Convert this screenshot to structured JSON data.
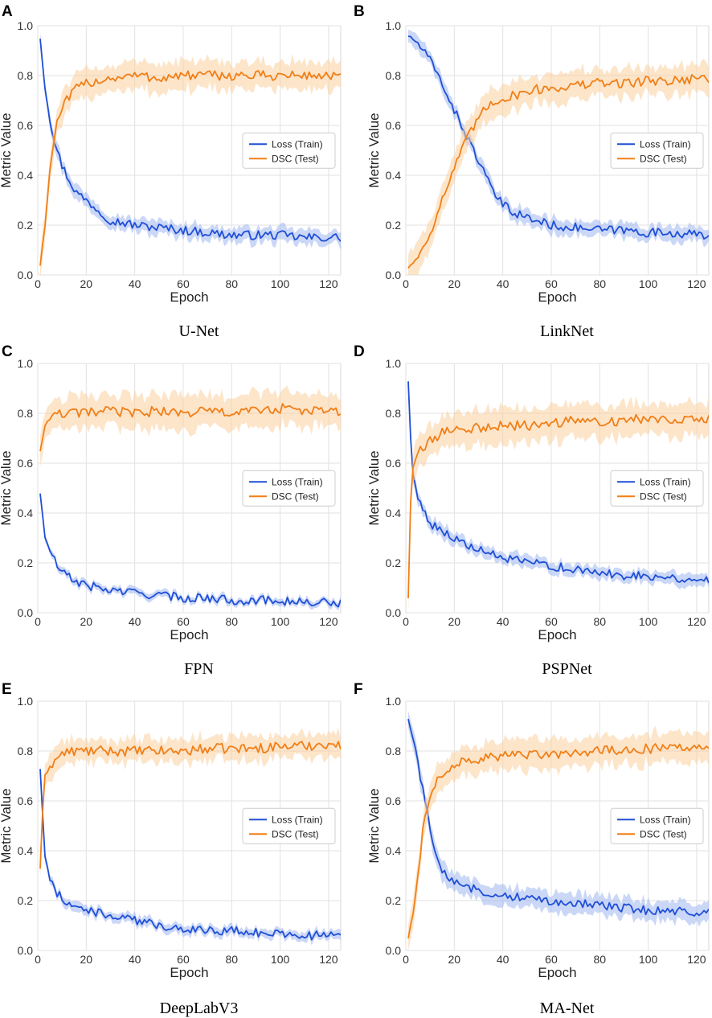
{
  "figure": {
    "colors": {
      "loss": "#1f4fd6",
      "dsc": "#f07f17",
      "loss_band": "#9fb6f0",
      "dsc_band": "#fbcf9f",
      "grid": "#e2e2e2"
    },
    "legend": {
      "loss": "Loss (Train)",
      "dsc": "DSC (Test)"
    }
  },
  "chart_data": [
    {
      "type": "line",
      "panel": "A",
      "caption": "U-Net",
      "xlabel": "Epoch",
      "ylabel": "Metric Value",
      "xlim": [
        0,
        125
      ],
      "ylim": [
        0,
        1.0
      ],
      "xticks": [
        "0",
        "20",
        "40",
        "60",
        "80",
        "100",
        "120"
      ],
      "yticks": [
        "0.0",
        "0.2",
        "0.4",
        "0.6",
        "0.8",
        "1.0"
      ],
      "legend_position": "center-right",
      "grid": true,
      "series": [
        {
          "name": "Loss (Train)",
          "x": [
            1,
            3,
            5,
            8,
            10,
            13,
            16,
            20,
            25,
            30,
            40,
            50,
            60,
            70,
            80,
            90,
            100,
            110,
            120,
            125
          ],
          "values": [
            0.95,
            0.75,
            0.62,
            0.5,
            0.44,
            0.38,
            0.33,
            0.3,
            0.26,
            0.22,
            0.2,
            0.19,
            0.18,
            0.17,
            0.16,
            0.16,
            0.16,
            0.15,
            0.15,
            0.15
          ],
          "band": 0.03
        },
        {
          "name": "DSC (Test)",
          "x": [
            1,
            3,
            5,
            7,
            9,
            12,
            15,
            20,
            25,
            30,
            40,
            50,
            60,
            70,
            80,
            90,
            100,
            110,
            120,
            125
          ],
          "values": [
            0.04,
            0.2,
            0.42,
            0.57,
            0.64,
            0.7,
            0.74,
            0.77,
            0.78,
            0.79,
            0.8,
            0.79,
            0.8,
            0.8,
            0.8,
            0.8,
            0.8,
            0.8,
            0.8,
            0.8
          ],
          "band": 0.06
        }
      ]
    },
    {
      "type": "line",
      "panel": "B",
      "caption": "LinkNet",
      "xlabel": "Epoch",
      "ylabel": "Metric Value",
      "xlim": [
        0,
        125
      ],
      "ylim": [
        0,
        1.0
      ],
      "xticks": [
        "0",
        "20",
        "40",
        "60",
        "80",
        "100",
        "120"
      ],
      "yticks": [
        "0.0",
        "0.2",
        "0.4",
        "0.6",
        "0.8",
        "1.0"
      ],
      "legend_position": "center-right",
      "grid": true,
      "series": [
        {
          "name": "Loss (Train)",
          "x": [
            1,
            5,
            10,
            15,
            20,
            25,
            30,
            35,
            40,
            45,
            50,
            60,
            70,
            80,
            90,
            100,
            110,
            120,
            125
          ],
          "values": [
            0.96,
            0.93,
            0.86,
            0.77,
            0.66,
            0.56,
            0.46,
            0.35,
            0.28,
            0.25,
            0.23,
            0.2,
            0.19,
            0.18,
            0.18,
            0.17,
            0.17,
            0.16,
            0.16
          ],
          "band": 0.03
        },
        {
          "name": "DSC (Test)",
          "x": [
            1,
            5,
            10,
            15,
            20,
            25,
            30,
            35,
            40,
            45,
            50,
            60,
            70,
            80,
            90,
            100,
            110,
            120,
            125
          ],
          "values": [
            0.03,
            0.07,
            0.17,
            0.3,
            0.43,
            0.54,
            0.63,
            0.69,
            0.71,
            0.72,
            0.74,
            0.75,
            0.76,
            0.77,
            0.77,
            0.78,
            0.78,
            0.79,
            0.79
          ],
          "band": 0.06
        }
      ]
    },
    {
      "type": "line",
      "panel": "C",
      "caption": "FPN",
      "xlabel": "Epoch",
      "ylabel": "Metric Value",
      "xlim": [
        0,
        125
      ],
      "ylim": [
        0,
        1.0
      ],
      "xticks": [
        "0",
        "20",
        "40",
        "60",
        "80",
        "100",
        "120"
      ],
      "yticks": [
        "0.0",
        "0.2",
        "0.4",
        "0.6",
        "0.8",
        "1.0"
      ],
      "legend_position": "center-right",
      "grid": true,
      "series": [
        {
          "name": "Loss (Train)",
          "x": [
            1,
            3,
            5,
            8,
            10,
            15,
            20,
            30,
            40,
            50,
            60,
            70,
            80,
            90,
            100,
            110,
            120,
            125
          ],
          "values": [
            0.48,
            0.3,
            0.25,
            0.19,
            0.16,
            0.13,
            0.11,
            0.09,
            0.08,
            0.07,
            0.06,
            0.06,
            0.05,
            0.05,
            0.05,
            0.04,
            0.04,
            0.04
          ],
          "band": 0.015
        },
        {
          "name": "DSC (Test)",
          "x": [
            1,
            3,
            5,
            8,
            10,
            15,
            20,
            30,
            40,
            50,
            60,
            70,
            80,
            90,
            100,
            110,
            120,
            125
          ],
          "values": [
            0.65,
            0.75,
            0.78,
            0.79,
            0.8,
            0.8,
            0.8,
            0.81,
            0.8,
            0.81,
            0.8,
            0.81,
            0.8,
            0.81,
            0.82,
            0.81,
            0.81,
            0.8
          ],
          "band": 0.07
        }
      ]
    },
    {
      "type": "line",
      "panel": "D",
      "caption": "PSPNet",
      "xlabel": "Epoch",
      "ylabel": "Metric Value",
      "xlim": [
        0,
        125
      ],
      "ylim": [
        0,
        1.0
      ],
      "xticks": [
        "0",
        "20",
        "40",
        "60",
        "80",
        "100",
        "120"
      ],
      "yticks": [
        "0.0",
        "0.2",
        "0.4",
        "0.6",
        "0.8",
        "1.0"
      ],
      "legend_position": "center-right",
      "grid": true,
      "series": [
        {
          "name": "Loss (Train)",
          "x": [
            1,
            2,
            3,
            5,
            8,
            10,
            15,
            20,
            25,
            30,
            40,
            50,
            60,
            70,
            80,
            90,
            100,
            110,
            120,
            125
          ],
          "values": [
            0.93,
            0.7,
            0.55,
            0.46,
            0.4,
            0.36,
            0.33,
            0.3,
            0.27,
            0.25,
            0.22,
            0.2,
            0.19,
            0.17,
            0.16,
            0.15,
            0.15,
            0.14,
            0.13,
            0.13
          ],
          "band": 0.025
        },
        {
          "name": "DSC (Test)",
          "x": [
            1,
            2,
            3,
            5,
            8,
            10,
            15,
            20,
            25,
            30,
            40,
            50,
            60,
            70,
            80,
            90,
            100,
            110,
            120,
            125
          ],
          "values": [
            0.06,
            0.45,
            0.58,
            0.64,
            0.67,
            0.69,
            0.72,
            0.74,
            0.74,
            0.74,
            0.75,
            0.75,
            0.76,
            0.77,
            0.77,
            0.77,
            0.78,
            0.78,
            0.78,
            0.78
          ],
          "band": 0.07
        }
      ]
    },
    {
      "type": "line",
      "panel": "E",
      "caption": "DeepLabV3",
      "xlabel": "Epoch",
      "ylabel": "Metric Value",
      "xlim": [
        0,
        125
      ],
      "ylim": [
        0,
        1.0
      ],
      "xticks": [
        "0",
        "20",
        "40",
        "60",
        "80",
        "100",
        "120"
      ],
      "yticks": [
        "0.0",
        "0.2",
        "0.4",
        "0.6",
        "0.8",
        "1.0"
      ],
      "legend_position": "center-right",
      "grid": true,
      "series": [
        {
          "name": "Loss (Train)",
          "x": [
            1,
            2,
            3,
            5,
            8,
            10,
            15,
            20,
            30,
            40,
            50,
            60,
            70,
            80,
            90,
            100,
            110,
            120,
            125
          ],
          "values": [
            0.73,
            0.55,
            0.38,
            0.28,
            0.23,
            0.21,
            0.18,
            0.16,
            0.14,
            0.12,
            0.1,
            0.09,
            0.08,
            0.08,
            0.07,
            0.07,
            0.06,
            0.06,
            0.06
          ],
          "band": 0.02
        },
        {
          "name": "DSC (Test)",
          "x": [
            1,
            2,
            3,
            5,
            8,
            10,
            15,
            20,
            30,
            40,
            50,
            60,
            70,
            80,
            90,
            100,
            110,
            120,
            125
          ],
          "values": [
            0.33,
            0.55,
            0.7,
            0.74,
            0.77,
            0.79,
            0.8,
            0.8,
            0.8,
            0.8,
            0.8,
            0.8,
            0.81,
            0.81,
            0.81,
            0.82,
            0.82,
            0.83,
            0.82
          ],
          "band": 0.05
        }
      ]
    },
    {
      "type": "line",
      "panel": "F",
      "caption": "MA-Net",
      "xlabel": "Epoch",
      "ylabel": "Metric Value",
      "xlim": [
        0,
        125
      ],
      "ylim": [
        0,
        1.0
      ],
      "xticks": [
        "0",
        "20",
        "40",
        "60",
        "80",
        "100",
        "120"
      ],
      "yticks": [
        "0.0",
        "0.2",
        "0.4",
        "0.6",
        "0.8",
        "1.0"
      ],
      "legend_position": "center-right",
      "grid": true,
      "series": [
        {
          "name": "Loss (Train)",
          "x": [
            1,
            3,
            5,
            7,
            9,
            11,
            13,
            15,
            20,
            25,
            30,
            40,
            50,
            60,
            70,
            80,
            90,
            100,
            110,
            120,
            125
          ],
          "values": [
            0.93,
            0.85,
            0.76,
            0.64,
            0.55,
            0.45,
            0.36,
            0.31,
            0.28,
            0.26,
            0.24,
            0.22,
            0.21,
            0.2,
            0.19,
            0.18,
            0.17,
            0.16,
            0.16,
            0.15,
            0.15
          ],
          "band": 0.04
        },
        {
          "name": "DSC (Test)",
          "x": [
            1,
            3,
            5,
            7,
            9,
            11,
            13,
            15,
            20,
            25,
            30,
            40,
            50,
            60,
            70,
            80,
            90,
            100,
            110,
            120,
            125
          ],
          "values": [
            0.05,
            0.15,
            0.3,
            0.47,
            0.58,
            0.65,
            0.69,
            0.71,
            0.74,
            0.76,
            0.77,
            0.78,
            0.78,
            0.79,
            0.79,
            0.8,
            0.8,
            0.81,
            0.81,
            0.81,
            0.81
          ],
          "band": 0.06
        }
      ]
    }
  ]
}
